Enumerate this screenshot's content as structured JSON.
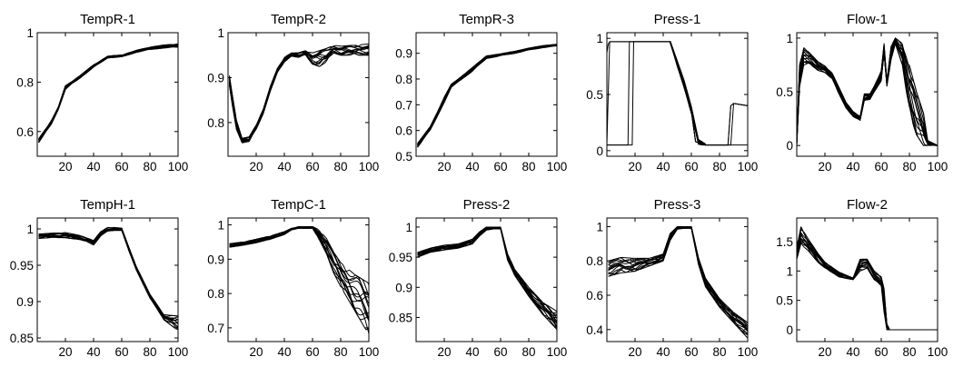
{
  "figure": {
    "line_color": "#000000",
    "background": "#ffffff",
    "grid": false,
    "layout_rows": 2,
    "layout_cols": 5
  },
  "chart_data": [
    {
      "type": "line",
      "title": "TempR-1",
      "xlim": [
        0,
        100
      ],
      "ylim": [
        0.5,
        1.0
      ],
      "xticks": [
        20,
        40,
        60,
        80,
        100
      ],
      "yticks": [
        0.6,
        0.8,
        1
      ],
      "ytick_labels": [
        "0.6",
        "0.8",
        "1"
      ],
      "envelope": [
        [
          1,
          0.555,
          0.57
        ],
        [
          10,
          0.63,
          0.645
        ],
        [
          15,
          0.69,
          0.7
        ],
        [
          20,
          0.77,
          0.785
        ],
        [
          25,
          0.795,
          0.805
        ],
        [
          30,
          0.815,
          0.825
        ],
        [
          40,
          0.86,
          0.87
        ],
        [
          50,
          0.898,
          0.905
        ],
        [
          60,
          0.902,
          0.91
        ],
        [
          70,
          0.92,
          0.928
        ],
        [
          80,
          0.932,
          0.942
        ],
        [
          90,
          0.938,
          0.95
        ],
        [
          100,
          0.942,
          0.955
        ]
      ]
    },
    {
      "type": "line",
      "title": "TempR-2",
      "xlim": [
        0,
        100
      ],
      "ylim": [
        0.725,
        1.0
      ],
      "xticks": [
        20,
        40,
        60,
        80,
        100
      ],
      "yticks": [
        0.8,
        0.9,
        1
      ],
      "ytick_labels": [
        "0.8",
        "0.9",
        "1"
      ],
      "envelope": [
        [
          1,
          0.88,
          0.905
        ],
        [
          3,
          0.84,
          0.865
        ],
        [
          6,
          0.785,
          0.805
        ],
        [
          10,
          0.755,
          0.765
        ],
        [
          15,
          0.758,
          0.768
        ],
        [
          20,
          0.785,
          0.795
        ],
        [
          25,
          0.82,
          0.83
        ],
        [
          30,
          0.87,
          0.88
        ],
        [
          35,
          0.91,
          0.92
        ],
        [
          40,
          0.935,
          0.945
        ],
        [
          45,
          0.948,
          0.955
        ],
        [
          50,
          0.945,
          0.955
        ],
        [
          55,
          0.95,
          0.96
        ],
        [
          60,
          0.93,
          0.955
        ],
        [
          65,
          0.925,
          0.96
        ],
        [
          70,
          0.935,
          0.965
        ],
        [
          75,
          0.955,
          0.972
        ],
        [
          80,
          0.95,
          0.97
        ],
        [
          90,
          0.95,
          0.972
        ],
        [
          100,
          0.95,
          0.975
        ]
      ]
    },
    {
      "type": "line",
      "title": "TempR-3",
      "xlim": [
        0,
        100
      ],
      "ylim": [
        0.5,
        0.98
      ],
      "xticks": [
        20,
        40,
        60,
        80,
        100
      ],
      "yticks": [
        0.5,
        0.6,
        0.7,
        0.8,
        0.9
      ],
      "ytick_labels": [
        "0.5",
        "0.6",
        "0.7",
        "0.8",
        "0.9"
      ],
      "envelope": [
        [
          1,
          0.535,
          0.55
        ],
        [
          10,
          0.6,
          0.615
        ],
        [
          15,
          0.655,
          0.67
        ],
        [
          20,
          0.71,
          0.73
        ],
        [
          25,
          0.765,
          0.78
        ],
        [
          30,
          0.79,
          0.8
        ],
        [
          40,
          0.83,
          0.845
        ],
        [
          50,
          0.88,
          0.89
        ],
        [
          60,
          0.89,
          0.898
        ],
        [
          70,
          0.9,
          0.908
        ],
        [
          80,
          0.912,
          0.92
        ],
        [
          90,
          0.922,
          0.93
        ],
        [
          100,
          0.928,
          0.935
        ]
      ]
    },
    {
      "type": "line",
      "title": "Press-1",
      "xlim": [
        0,
        100
      ],
      "ylim": [
        -0.05,
        1.05
      ],
      "xticks": [
        20,
        40,
        60,
        80,
        100
      ],
      "yticks": [
        0,
        0.5,
        1
      ],
      "ytick_labels": [
        "0",
        "0.5",
        "1"
      ],
      "series": [
        {
          "x": [
            0,
            1,
            2,
            18,
            18.5,
            45,
            60,
            63,
            70,
            85,
            86,
            90,
            100
          ],
          "y": [
            0.87,
            0.95,
            0.97,
            0.97,
            0.97,
            0.97,
            0.35,
            0.08,
            0.05,
            0.05,
            0.05,
            0.05,
            0.05
          ]
        },
        {
          "x": [
            0,
            1,
            2,
            3,
            15,
            16,
            20,
            45,
            60,
            63,
            70,
            86,
            88,
            90,
            100
          ],
          "y": [
            0.05,
            0.05,
            0.05,
            0.05,
            0.05,
            0.97,
            0.97,
            0.97,
            0.35,
            0.08,
            0.05,
            0.05,
            0.4,
            0.42,
            0.4
          ]
        },
        {
          "x": [
            0,
            1,
            2,
            3,
            18,
            19,
            20,
            45,
            60,
            63,
            70,
            86,
            88,
            90,
            100
          ],
          "y": [
            0.05,
            0.05,
            0.05,
            0.05,
            0.05,
            0.97,
            0.97,
            0.97,
            0.35,
            0.08,
            0.05,
            0.05,
            0.4,
            0.42,
            0.4
          ]
        },
        {
          "x": [
            0,
            2,
            45,
            60,
            63,
            70,
            88,
            90,
            100
          ],
          "y": [
            0.05,
            0.97,
            0.97,
            0.35,
            0.08,
            0.05,
            0.05,
            0.42,
            0.4
          ]
        }
      ],
      "envelope": [
        [
          45,
          0.955,
          0.975
        ],
        [
          50,
          0.75,
          0.8
        ],
        [
          55,
          0.56,
          0.62
        ],
        [
          60,
          0.33,
          0.39
        ],
        [
          65,
          0.05,
          0.1
        ],
        [
          70,
          0.05,
          0.06
        ]
      ]
    },
    {
      "type": "line",
      "title": "Flow-1",
      "xlim": [
        0,
        100
      ],
      "ylim": [
        -0.1,
        1.05
      ],
      "xticks": [
        20,
        40,
        60,
        80,
        100
      ],
      "yticks": [
        0,
        0.5,
        1
      ],
      "ytick_labels": [
        "0",
        "0.5",
        "1"
      ],
      "envelope": [
        [
          0,
          0.0,
          0.05
        ],
        [
          2,
          0.55,
          0.75
        ],
        [
          5,
          0.75,
          0.92
        ],
        [
          10,
          0.75,
          0.85
        ],
        [
          15,
          0.7,
          0.78
        ],
        [
          20,
          0.68,
          0.74
        ],
        [
          25,
          0.62,
          0.68
        ],
        [
          30,
          0.48,
          0.54
        ],
        [
          35,
          0.35,
          0.4
        ],
        [
          40,
          0.27,
          0.32
        ],
        [
          45,
          0.23,
          0.27
        ],
        [
          48,
          0.42,
          0.48
        ],
        [
          52,
          0.43,
          0.48
        ],
        [
          55,
          0.5,
          0.55
        ],
        [
          60,
          0.6,
          0.7
        ],
        [
          62,
          0.85,
          0.95
        ],
        [
          64,
          0.55,
          0.6
        ],
        [
          67,
          0.8,
          0.92
        ],
        [
          70,
          0.95,
          1.0
        ],
        [
          75,
          0.75,
          0.95
        ],
        [
          80,
          0.3,
          0.75
        ],
        [
          85,
          0.1,
          0.5
        ],
        [
          90,
          0.0,
          0.3
        ],
        [
          93,
          0.0,
          0.05
        ],
        [
          100,
          0.0,
          0.0
        ]
      ]
    },
    {
      "type": "line",
      "title": "TempH-1",
      "xlim": [
        0,
        100
      ],
      "ylim": [
        0.845,
        1.015
      ],
      "xticks": [
        20,
        40,
        60,
        80,
        100
      ],
      "yticks": [
        0.85,
        0.9,
        0.95,
        1
      ],
      "ytick_labels": [
        "0.85",
        "0.9",
        "0.95",
        "1"
      ],
      "envelope": [
        [
          1,
          0.987,
          0.993
        ],
        [
          10,
          0.988,
          0.994
        ],
        [
          20,
          0.988,
          0.995
        ],
        [
          30,
          0.985,
          0.991
        ],
        [
          35,
          0.983,
          0.988
        ],
        [
          40,
          0.978,
          0.984
        ],
        [
          45,
          0.99,
          0.996
        ],
        [
          50,
          0.997,
          1.002
        ],
        [
          55,
          0.998,
          1.002
        ],
        [
          60,
          0.998,
          1.001
        ],
        [
          65,
          0.97,
          0.975
        ],
        [
          70,
          0.945,
          0.95
        ],
        [
          80,
          0.905,
          0.91
        ],
        [
          90,
          0.875,
          0.882
        ],
        [
          100,
          0.86,
          0.88
        ]
      ]
    },
    {
      "type": "line",
      "title": "TempC-1",
      "xlim": [
        0,
        100
      ],
      "ylim": [
        0.66,
        1.02
      ],
      "xticks": [
        20,
        40,
        60,
        80,
        100
      ],
      "yticks": [
        0.7,
        0.8,
        0.9,
        1
      ],
      "ytick_labels": [
        "0.7",
        "0.8",
        "0.9",
        "1"
      ],
      "envelope": [
        [
          1,
          0.935,
          0.945
        ],
        [
          10,
          0.94,
          0.95
        ],
        [
          20,
          0.948,
          0.958
        ],
        [
          30,
          0.958,
          0.968
        ],
        [
          40,
          0.972,
          0.98
        ],
        [
          45,
          0.985,
          0.99
        ],
        [
          50,
          0.99,
          0.995
        ],
        [
          55,
          0.99,
          0.995
        ],
        [
          60,
          0.99,
          0.995
        ],
        [
          65,
          0.955,
          0.985
        ],
        [
          70,
          0.915,
          0.96
        ],
        [
          75,
          0.86,
          0.92
        ],
        [
          80,
          0.82,
          0.89
        ],
        [
          90,
          0.75,
          0.855
        ],
        [
          100,
          0.68,
          0.83
        ]
      ]
    },
    {
      "type": "line",
      "title": "Press-2",
      "xlim": [
        0,
        100
      ],
      "ylim": [
        0.81,
        1.015
      ],
      "xticks": [
        20,
        40,
        60,
        80,
        100
      ],
      "yticks": [
        0.85,
        0.9,
        0.95,
        1
      ],
      "ytick_labels": [
        "0.85",
        "0.9",
        "0.95",
        "1"
      ],
      "envelope": [
        [
          1,
          0.95,
          0.958
        ],
        [
          10,
          0.958,
          0.965
        ],
        [
          20,
          0.962,
          0.97
        ],
        [
          30,
          0.965,
          0.972
        ],
        [
          40,
          0.972,
          0.98
        ],
        [
          45,
          0.985,
          0.992
        ],
        [
          50,
          0.995,
          1.0
        ],
        [
          55,
          0.997,
          1.0
        ],
        [
          60,
          0.997,
          1.0
        ],
        [
          65,
          0.945,
          0.955
        ],
        [
          70,
          0.92,
          0.93
        ],
        [
          80,
          0.885,
          0.9
        ],
        [
          90,
          0.855,
          0.875
        ],
        [
          100,
          0.83,
          0.86
        ]
      ]
    },
    {
      "type": "line",
      "title": "Press-3",
      "xlim": [
        0,
        100
      ],
      "ylim": [
        0.33,
        1.05
      ],
      "xticks": [
        20,
        40,
        60,
        80,
        100
      ],
      "yticks": [
        0.4,
        0.6,
        0.8,
        1
      ],
      "ytick_labels": [
        "0.4",
        "0.6",
        "0.8",
        "1"
      ],
      "envelope": [
        [
          1,
          0.71,
          0.8
        ],
        [
          10,
          0.73,
          0.82
        ],
        [
          20,
          0.74,
          0.815
        ],
        [
          30,
          0.77,
          0.815
        ],
        [
          40,
          0.8,
          0.84
        ],
        [
          45,
          0.92,
          0.96
        ],
        [
          50,
          0.985,
          1.0
        ],
        [
          55,
          0.99,
          1.0
        ],
        [
          60,
          0.99,
          1.0
        ],
        [
          65,
          0.78,
          0.82
        ],
        [
          70,
          0.65,
          0.7
        ],
        [
          80,
          0.53,
          0.58
        ],
        [
          90,
          0.44,
          0.5
        ],
        [
          100,
          0.35,
          0.44
        ]
      ]
    },
    {
      "type": "line",
      "title": "Flow-2",
      "xlim": [
        0,
        100
      ],
      "ylim": [
        -0.2,
        1.9
      ],
      "xticks": [
        20,
        40,
        60,
        80,
        100
      ],
      "yticks": [
        0,
        0.5,
        1,
        1.5
      ],
      "ytick_labels": [
        "0",
        "0.5",
        "1",
        "1.5"
      ],
      "envelope": [
        [
          0,
          1.2,
          1.4
        ],
        [
          3,
          1.45,
          1.75
        ],
        [
          8,
          1.35,
          1.55
        ],
        [
          15,
          1.15,
          1.3
        ],
        [
          20,
          1.05,
          1.15
        ],
        [
          30,
          0.9,
          0.98
        ],
        [
          40,
          0.85,
          0.88
        ],
        [
          45,
          1.0,
          1.2
        ],
        [
          50,
          1.05,
          1.2
        ],
        [
          55,
          0.85,
          1.0
        ],
        [
          60,
          0.75,
          0.9
        ],
        [
          62,
          0.3,
          0.7
        ],
        [
          64,
          0.0,
          0.1
        ],
        [
          66,
          0.0,
          0.0
        ],
        [
          100,
          0.0,
          0.0
        ]
      ]
    }
  ]
}
